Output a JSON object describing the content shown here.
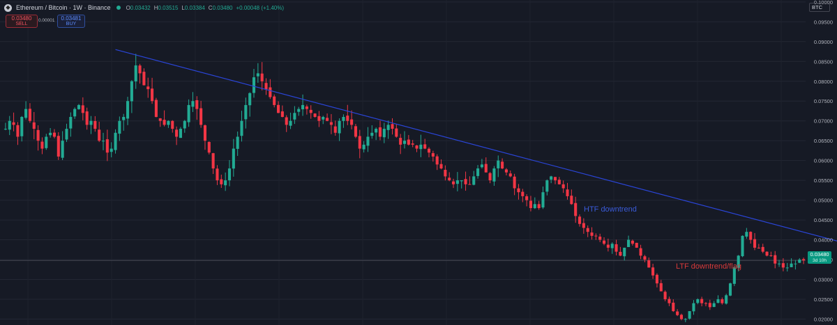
{
  "header": {
    "symbol": "Ethereum / Bitcoin · 1W · Binance",
    "ohlc": [
      {
        "k": "O",
        "v": "0.03432"
      },
      {
        "k": "H",
        "v": "0.03515"
      },
      {
        "k": "L",
        "v": "0.03384"
      },
      {
        "k": "C",
        "v": "0.03480"
      },
      {
        "k": "",
        "v": "+0.00048 (+1.40%)"
      }
    ]
  },
  "trade": {
    "sell_price": "0.03480",
    "sell_label": "SELL",
    "spread": "0.00001",
    "buy_price": "0.03481",
    "buy_label": "BUY"
  },
  "currency_button": "BTC",
  "last_price": {
    "value": "0.03480",
    "countdown": "3d 10h"
  },
  "colors": {
    "background": "#161a25",
    "up": "#22ab94",
    "down": "#f23645",
    "htf_line": "#2a45d8",
    "ltf_line": "#c0393f",
    "annotation_blue": "#3a5bd9",
    "annotation_red": "#d93a3a"
  },
  "chart_data": {
    "type": "candlestick",
    "yaxis": {
      "min": 0.0185,
      "max": 0.1005,
      "ticks": [
        "0.10000",
        "0.09500",
        "0.09000",
        "0.08500",
        "0.08000",
        "0.07500",
        "0.07000",
        "0.06500",
        "0.06000",
        "0.05500",
        "0.05000",
        "0.04500",
        "0.04000",
        "0.03500",
        "0.03000",
        "0.02500",
        "0.02000"
      ]
    },
    "grid": true,
    "anchors": [
      0.068,
      0.07,
      0.069,
      0.066,
      0.071,
      0.073,
      0.07,
      0.068,
      0.065,
      0.063,
      0.066,
      0.067,
      0.066,
      0.061,
      0.065,
      0.068,
      0.071,
      0.073,
      0.074,
      0.072,
      0.069,
      0.07,
      0.068,
      0.065,
      0.065,
      0.062,
      0.063,
      0.067,
      0.07,
      0.071,
      0.075,
      0.08,
      0.084,
      0.082,
      0.079,
      0.078,
      0.075,
      0.071,
      0.07,
      0.069,
      0.07,
      0.068,
      0.066,
      0.068,
      0.07,
      0.074,
      0.075,
      0.073,
      0.069,
      0.065,
      0.062,
      0.058,
      0.055,
      0.054,
      0.055,
      0.058,
      0.063,
      0.066,
      0.07,
      0.074,
      0.077,
      0.081,
      0.082,
      0.08,
      0.078,
      0.076,
      0.074,
      0.072,
      0.071,
      0.069,
      0.07,
      0.072,
      0.073,
      0.074,
      0.073,
      0.072,
      0.071,
      0.07,
      0.071,
      0.07,
      0.069,
      0.067,
      0.07,
      0.071,
      0.07,
      0.069,
      0.066,
      0.063,
      0.064,
      0.066,
      0.067,
      0.068,
      0.066,
      0.068,
      0.069,
      0.068,
      0.066,
      0.064,
      0.065,
      0.064,
      0.064,
      0.063,
      0.064,
      0.063,
      0.062,
      0.061,
      0.059,
      0.058,
      0.056,
      0.055,
      0.054,
      0.055,
      0.055,
      0.054,
      0.054,
      0.056,
      0.058,
      0.059,
      0.057,
      0.055,
      0.058,
      0.06,
      0.058,
      0.057,
      0.056,
      0.053,
      0.052,
      0.051,
      0.05,
      0.048,
      0.049,
      0.048,
      0.052,
      0.055,
      0.056,
      0.055,
      0.054,
      0.053,
      0.051,
      0.049,
      0.046,
      0.044,
      0.043,
      0.042,
      0.041,
      0.041,
      0.04,
      0.039,
      0.038,
      0.039,
      0.037,
      0.036,
      0.038,
      0.04,
      0.039,
      0.038,
      0.036,
      0.035,
      0.033,
      0.031,
      0.029,
      0.027,
      0.025,
      0.024,
      0.022,
      0.021,
      0.02,
      0.02,
      0.022,
      0.024,
      0.025,
      0.024,
      0.024,
      0.023,
      0.024,
      0.025,
      0.024,
      0.026,
      0.029,
      0.033,
      0.036,
      0.041,
      0.042,
      0.04,
      0.038,
      0.038,
      0.037,
      0.036,
      0.036,
      0.034,
      0.034,
      0.033,
      0.033,
      0.034,
      0.034,
      0.035,
      0.0348
    ],
    "trendlines": [
      {
        "label": "HTF downtrend",
        "from": {
          "i": 27,
          "y": 0.088
        },
        "to": {
          "i": 224,
          "y": 0.0343
        }
      },
      {
        "label": "LTF downtrend/flag",
        "from": {
          "i": 208,
          "y": 0.0425
        },
        "to": {
          "i": 224,
          "y": 0.0343
        }
      }
    ],
    "current_price": 0.0348
  }
}
